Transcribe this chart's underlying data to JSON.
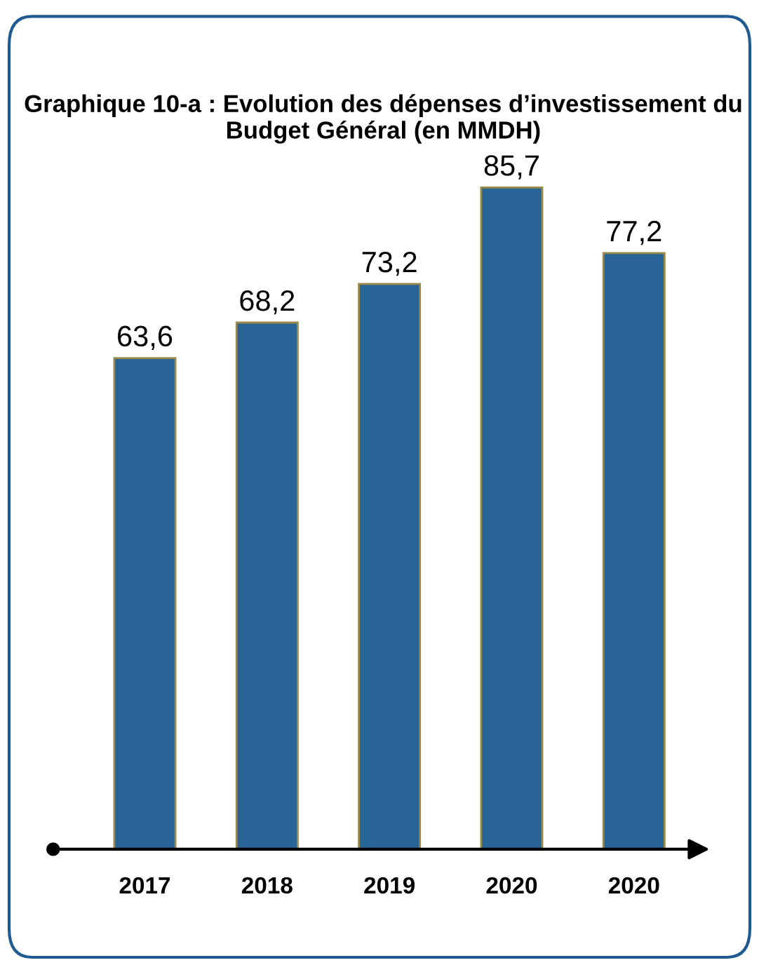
{
  "chart_data": {
    "type": "bar",
    "title": "Graphique 10-a : Evolution des dépenses d’investissement du Budget Général (en MMDH)",
    "categories": [
      "2017",
      "2018",
      "2019",
      "2020",
      "2020"
    ],
    "values": [
      63.6,
      68.2,
      73.2,
      85.7,
      77.2
    ],
    "value_labels": [
      "63,6",
      "68,2",
      "73,2",
      "85,7",
      "77,2"
    ],
    "color": "#286496"
  }
}
